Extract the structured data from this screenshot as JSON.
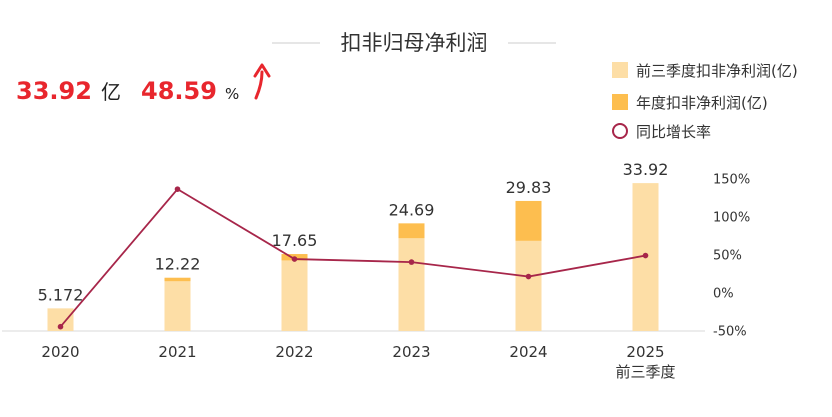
{
  "header": {
    "value": "33.92",
    "value_unit": "亿",
    "growth": "48.59",
    "growth_unit": "%"
  },
  "colors": {
    "bar_light": "#fddea6",
    "bar_dark": "#fdbe4f",
    "line": "#a7264a",
    "accent_red": "#e8262d",
    "axis": "#d9d9d9"
  },
  "chart_data": {
    "type": "bar",
    "title": "扣非归母净利润",
    "categories": [
      "2020",
      "2021",
      "2022",
      "2023",
      "2024",
      "2025"
    ],
    "category_sublabels": [
      "",
      "",
      "",
      "",
      "",
      "前三季度"
    ],
    "series": [
      {
        "name": "前三季度扣非净利润(亿)",
        "type": "bar",
        "values": [
          5.172,
          11.43,
          16.2,
          21.3,
          20.7,
          33.92
        ],
        "color": "#fddea6"
      },
      {
        "name": "年度扣非净利润(亿)",
        "type": "bar",
        "values": [
          5.172,
          12.22,
          17.65,
          24.69,
          29.83,
          null
        ],
        "color": "#fdbe4f"
      },
      {
        "name": "同比增长率",
        "type": "line",
        "axis": "right",
        "values": [
          -45,
          136,
          44,
          40,
          21,
          48.59
        ],
        "color": "#a7264a"
      }
    ],
    "data_labels": [
      "5.172",
      "12.22",
      "17.65",
      "24.69",
      "29.83",
      "33.92"
    ],
    "ylim_left": [
      0,
      50
    ],
    "ylim_right": [
      -50,
      150
    ],
    "right_ticks": [
      "150%",
      "100%",
      "50%",
      "0%",
      "-50%"
    ],
    "legend_position": "top-right",
    "grid": false
  }
}
